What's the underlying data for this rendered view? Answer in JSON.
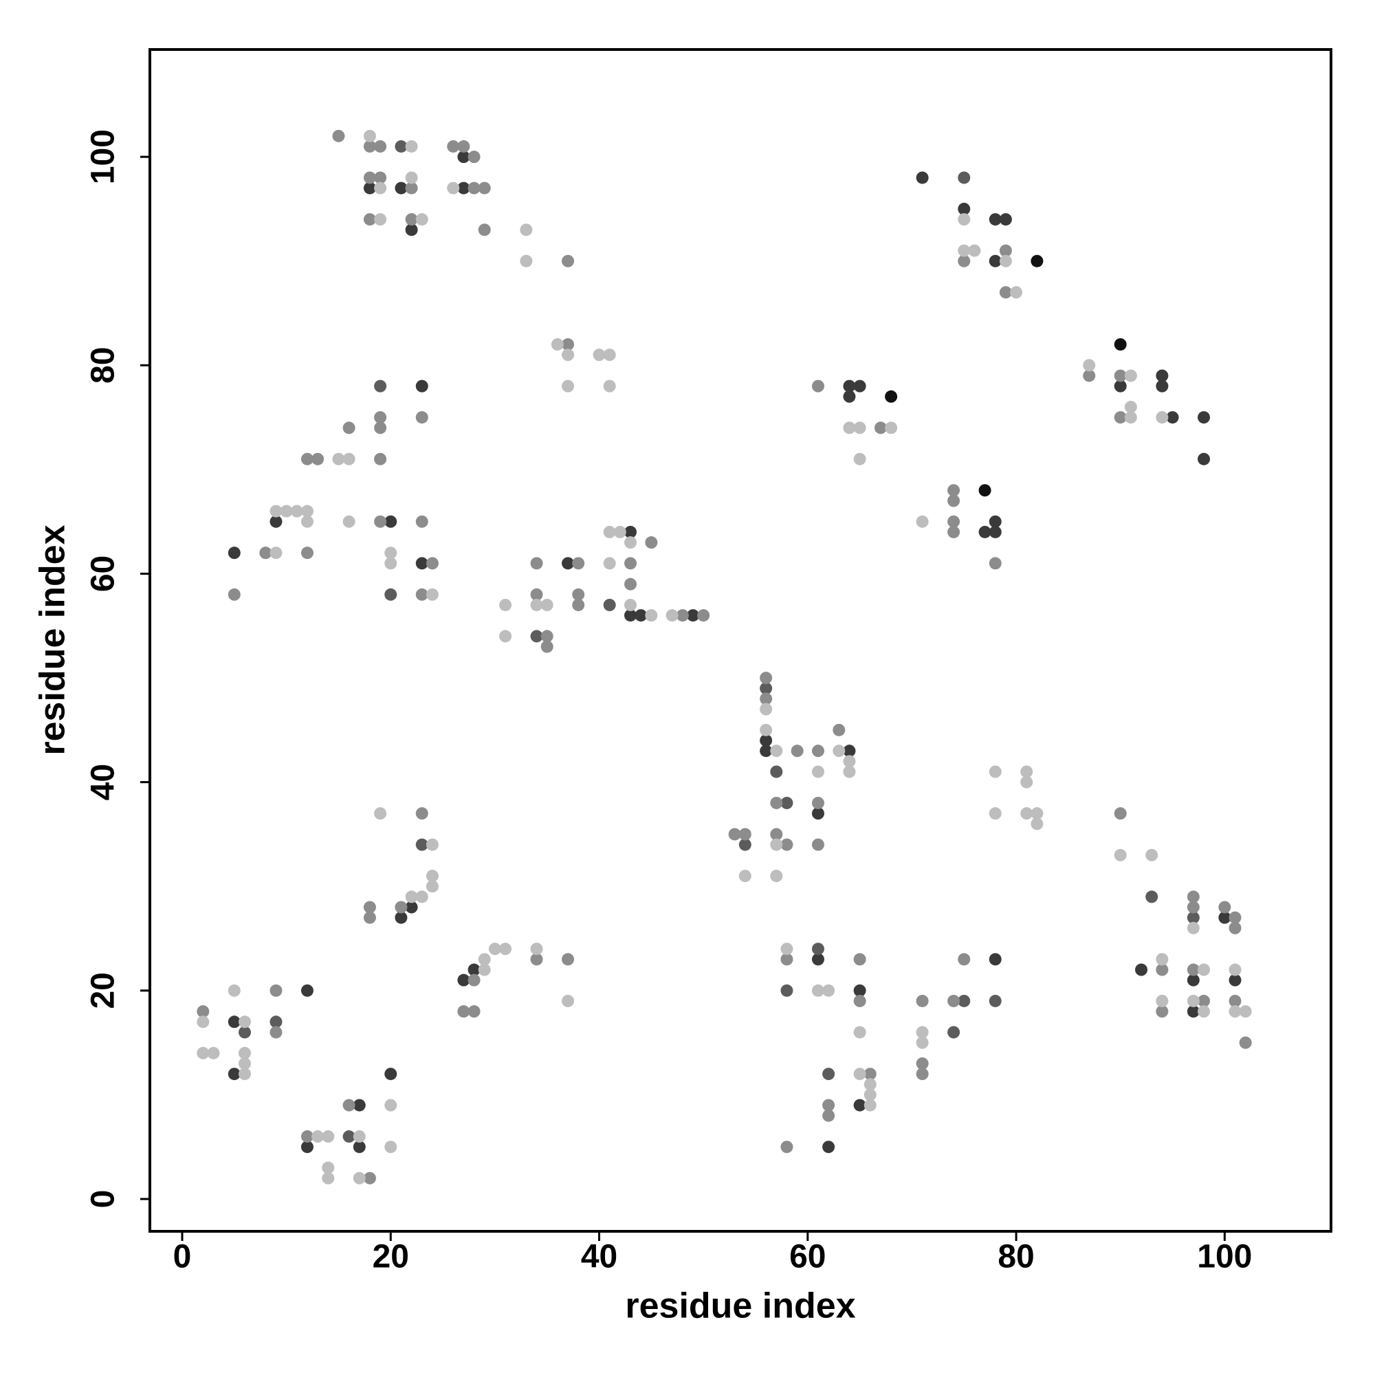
{
  "chart_data": {
    "type": "scatter",
    "x_label": "residue index",
    "y_label": "residue index",
    "xlim": [
      -3.1,
      110.2
    ],
    "ylim": [
      -3.1,
      110.3
    ],
    "xticks": [
      0,
      20,
      40,
      60,
      80,
      100
    ],
    "yticks": [
      0,
      20,
      40,
      60,
      80,
      100
    ],
    "grid": false,
    "series": [
      {
        "color": "#111111",
        "x": [
          68,
          77,
          82,
          90
        ],
        "values": [
          77,
          68,
          90,
          82
        ]
      },
      {
        "color": "#3a3a3a",
        "x": [
          5,
          5,
          12,
          12,
          17,
          17,
          20,
          21,
          22,
          27,
          28,
          5,
          9,
          20,
          23,
          23,
          18,
          21,
          22,
          27,
          27,
          37,
          43,
          43,
          44,
          49,
          56,
          56,
          64,
          61,
          61,
          65,
          65,
          62,
          78,
          92,
          97,
          97,
          100,
          101,
          64,
          65,
          64,
          77,
          78,
          78,
          71,
          75,
          78,
          79,
          78,
          90,
          94,
          94,
          95,
          98,
          98
        ],
        "values": [
          17,
          12,
          20,
          5,
          9,
          5,
          12,
          27,
          28,
          21,
          22,
          62,
          65,
          65,
          78,
          61,
          97,
          97,
          93,
          100,
          97,
          61,
          64,
          56,
          56,
          56,
          44,
          43,
          43,
          37,
          23,
          20,
          9,
          5,
          23,
          22,
          21,
          18,
          27,
          21,
          78,
          78,
          77,
          64,
          65,
          64,
          98,
          95,
          94,
          94,
          90,
          78,
          79,
          78,
          75,
          75,
          71
        ]
      },
      {
        "color": "#5c5c5c",
        "x": [
          6,
          9,
          16,
          23,
          19,
          20,
          21,
          34,
          41,
          54,
          56,
          57,
          58,
          58,
          61,
          62,
          74,
          75,
          78,
          93,
          97,
          75
        ],
        "values": [
          16,
          17,
          6,
          34,
          78,
          58,
          101,
          54,
          57,
          34,
          49,
          41,
          38,
          20,
          24,
          12,
          16,
          19,
          19,
          29,
          27,
          98
        ]
      },
      {
        "color": "#8c8c8c",
        "x": [
          2,
          9,
          9,
          12,
          16,
          18,
          18,
          18,
          21,
          23,
          27,
          28,
          28,
          34,
          37,
          5,
          8,
          12,
          12,
          13,
          16,
          19,
          19,
          19,
          19,
          23,
          23,
          23,
          24,
          15,
          18,
          19,
          18,
          19,
          22,
          18,
          22,
          26,
          27,
          28,
          28,
          29,
          29,
          37,
          37,
          34,
          34,
          35,
          35,
          38,
          38,
          38,
          43,
          43,
          45,
          48,
          50,
          53,
          54,
          56,
          56,
          59,
          61,
          63,
          57,
          61,
          57,
          58,
          61,
          58,
          65,
          65,
          62,
          62,
          66,
          58,
          71,
          71,
          71,
          74,
          75,
          90,
          94,
          94,
          97,
          97,
          97,
          98,
          100,
          101,
          101,
          101,
          102,
          61,
          67,
          74,
          74,
          74,
          74,
          78,
          75,
          79,
          79,
          87,
          90,
          90
        ],
        "values": [
          18,
          20,
          16,
          6,
          9,
          2,
          28,
          27,
          28,
          37,
          18,
          21,
          18,
          23,
          23,
          58,
          62,
          62,
          71,
          71,
          74,
          75,
          74,
          71,
          65,
          75,
          65,
          58,
          61,
          102,
          101,
          101,
          98,
          98,
          97,
          94,
          94,
          101,
          101,
          100,
          97,
          97,
          93,
          90,
          82,
          61,
          58,
          54,
          53,
          61,
          58,
          57,
          61,
          59,
          63,
          56,
          56,
          35,
          35,
          50,
          48,
          43,
          43,
          45,
          38,
          38,
          35,
          34,
          34,
          23,
          23,
          19,
          9,
          8,
          12,
          5,
          19,
          13,
          12,
          19,
          23,
          37,
          22,
          18,
          29,
          28,
          22,
          19,
          28,
          27,
          26,
          19,
          15,
          78,
          74,
          68,
          67,
          65,
          64,
          61,
          90,
          91,
          87,
          79,
          79,
          75
        ]
      },
      {
        "color": "#bdbdbd",
        "x": [
          2,
          2,
          3,
          5,
          6,
          6,
          6,
          6,
          13,
          14,
          14,
          14,
          17,
          17,
          20,
          20,
          19,
          22,
          23,
          24,
          24,
          24,
          29,
          29,
          30,
          31,
          34,
          37,
          9,
          9,
          10,
          11,
          12,
          12,
          15,
          16,
          16,
          20,
          20,
          24,
          18,
          22,
          19,
          22,
          19,
          23,
          26,
          33,
          33,
          36,
          37,
          37,
          40,
          41,
          41,
          31,
          31,
          34,
          35,
          41,
          42,
          41,
          43,
          43,
          45,
          47,
          54,
          56,
          56,
          57,
          63,
          64,
          64,
          61,
          57,
          57,
          58,
          61,
          62,
          65,
          65,
          66,
          66,
          66,
          71,
          71,
          78,
          78,
          81,
          81,
          81,
          82,
          82,
          90,
          93,
          94,
          94,
          97,
          98,
          97,
          98,
          101,
          101,
          102,
          64,
          65,
          68,
          65,
          71,
          75,
          75,
          76,
          79,
          80,
          87,
          91,
          91,
          91,
          94
        ],
        "values": [
          17,
          14,
          14,
          20,
          17,
          14,
          13,
          12,
          6,
          6,
          3,
          2,
          6,
          2,
          9,
          5,
          37,
          29,
          29,
          34,
          31,
          30,
          23,
          22,
          24,
          24,
          24,
          19,
          62,
          66,
          66,
          66,
          66,
          65,
          71,
          71,
          65,
          62,
          61,
          58,
          102,
          101,
          97,
          98,
          94,
          94,
          97,
          93,
          90,
          82,
          81,
          78,
          81,
          81,
          78,
          57,
          54,
          57,
          57,
          64,
          64,
          61,
          63,
          57,
          56,
          56,
          31,
          47,
          45,
          43,
          43,
          42,
          41,
          41,
          34,
          31,
          24,
          20,
          20,
          16,
          12,
          11,
          10,
          9,
          16,
          15,
          41,
          37,
          41,
          40,
          37,
          37,
          36,
          33,
          33,
          23,
          19,
          26,
          22,
          19,
          18,
          22,
          18,
          18,
          74,
          74,
          74,
          71,
          65,
          94,
          91,
          91,
          90,
          87,
          80,
          79,
          76,
          75,
          75
        ]
      }
    ]
  }
}
